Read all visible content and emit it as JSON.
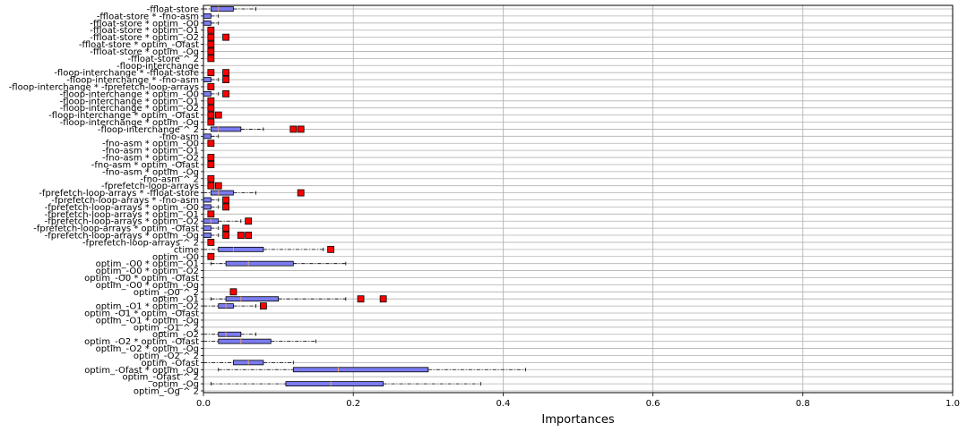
{
  "chart_data": {
    "type": "boxplot",
    "orientation": "horizontal",
    "xlabel": "Importances",
    "xlim": [
      0,
      1
    ],
    "xticks": [
      "0.0",
      "0.2",
      "0.4",
      "0.6",
      "0.8",
      "1.0"
    ],
    "xtick_values": [
      0,
      0.2,
      0.4,
      0.6,
      0.8,
      1.0
    ],
    "grid": true,
    "colors": {
      "box_fill": "#7b7bf0",
      "box_edge": "#000000",
      "median": "#e8a070",
      "flier": "#ff0000",
      "grid": "#b0b0b0"
    },
    "categories": [
      "-ffloat-store",
      "-ffloat-store * -fno-asm",
      "-ffloat-store * optim_-O0",
      "-ffloat-store * optim_-O1",
      "-ffloat-store * optim_-O2",
      "-ffloat-store * optim_-Ofast",
      "-ffloat-store * optim_-Og",
      "-ffloat-store ^ 2",
      "-floop-interchange",
      "-floop-interchange * -ffloat-store",
      "-floop-interchange * -fno-asm",
      "-floop-interchange * -fprefetch-loop-arrays",
      "-floop-interchange * optim_-O0",
      "-floop-interchange * optim_-O1",
      "-floop-interchange * optim_-O2",
      "-floop-interchange * optim_-Ofast",
      "-floop-interchange * optim_-Og",
      "-floop-interchange ^ 2",
      "-fno-asm",
      "-fno-asm * optim_-O0",
      "-fno-asm * optim_-O1",
      "-fno-asm * optim_-O2",
      "-fno-asm * optim_-Ofast",
      "-fno-asm * optim_-Og",
      "-fno-asm ^ 2",
      "-fprefetch-loop-arrays",
      "-fprefetch-loop-arrays * -ffloat-store",
      "-fprefetch-loop-arrays * -fno-asm",
      "-fprefetch-loop-arrays * optim_-O0",
      "-fprefetch-loop-arrays * optim_-O1",
      "-fprefetch-loop-arrays * optim_-O2",
      "-fprefetch-loop-arrays * optim_-Ofast",
      "-fprefetch-loop-arrays * optim_-Og",
      "-fprefetch-loop-arrays ^ 2",
      "ctime",
      "optim_-O0",
      "optim_-O0 * optim_-O1",
      "optim_-O0 * optim_-O2",
      "optim_-O0 * optim_-Ofast",
      "optim_-O0 * optim_-Og",
      "optim_-O0 ^ 2",
      "optim_-O1",
      "optim_-O1 * optim_-O2",
      "optim_-O1 * optim_-Ofast",
      "optim_-O1 * optim_-Og",
      "optim_-O1 ^ 2",
      "optim_-O2",
      "optim_-O2 * optim_-Ofast",
      "optim_-O2 * optim_-Og",
      "optim_-O2 ^ 2",
      "optim_-Ofast",
      "optim_-Ofast * optim_-Og",
      "optim_-Ofast ^ 2",
      "optim_-Og",
      "optim_-Og ^ 2"
    ],
    "boxes": [
      {
        "wlo": 0.0,
        "q1": 0.01,
        "med": 0.02,
        "q3": 0.04,
        "whi": 0.07,
        "fliers": []
      },
      {
        "wlo": 0.0,
        "q1": 0.0,
        "med": 0.0,
        "q3": 0.01,
        "whi": 0.02,
        "fliers": []
      },
      {
        "wlo": 0.0,
        "q1": 0.0,
        "med": 0.0,
        "q3": 0.01,
        "whi": 0.02,
        "fliers": []
      },
      {
        "wlo": 0.0,
        "q1": 0.0,
        "med": 0.0,
        "q3": 0.0,
        "whi": 0.0,
        "fliers": [
          0.01
        ]
      },
      {
        "wlo": 0.0,
        "q1": 0.0,
        "med": 0.0,
        "q3": 0.0,
        "whi": 0.0,
        "fliers": [
          0.01,
          0.03
        ]
      },
      {
        "wlo": 0.0,
        "q1": 0.0,
        "med": 0.0,
        "q3": 0.0,
        "whi": 0.0,
        "fliers": [
          0.01
        ]
      },
      {
        "wlo": 0.0,
        "q1": 0.0,
        "med": 0.0,
        "q3": 0.0,
        "whi": 0.0,
        "fliers": [
          0.01
        ]
      },
      {
        "wlo": 0.0,
        "q1": 0.0,
        "med": 0.0,
        "q3": 0.0,
        "whi": 0.0,
        "fliers": [
          0.01
        ]
      },
      {
        "wlo": 0.0,
        "q1": 0.0,
        "med": 0.0,
        "q3": 0.0,
        "whi": 0.0,
        "fliers": []
      },
      {
        "wlo": 0.0,
        "q1": 0.0,
        "med": 0.0,
        "q3": 0.0,
        "whi": 0.0,
        "fliers": [
          0.01,
          0.03
        ]
      },
      {
        "wlo": 0.0,
        "q1": 0.0,
        "med": 0.0,
        "q3": 0.01,
        "whi": 0.02,
        "fliers": [
          0.03
        ]
      },
      {
        "wlo": 0.0,
        "q1": 0.0,
        "med": 0.0,
        "q3": 0.0,
        "whi": 0.0,
        "fliers": [
          0.01
        ]
      },
      {
        "wlo": 0.0,
        "q1": 0.0,
        "med": 0.0,
        "q3": 0.01,
        "whi": 0.02,
        "fliers": [
          0.03
        ]
      },
      {
        "wlo": 0.0,
        "q1": 0.0,
        "med": 0.0,
        "q3": 0.0,
        "whi": 0.0,
        "fliers": [
          0.01
        ]
      },
      {
        "wlo": 0.0,
        "q1": 0.0,
        "med": 0.0,
        "q3": 0.0,
        "whi": 0.0,
        "fliers": [
          0.01
        ]
      },
      {
        "wlo": 0.0,
        "q1": 0.0,
        "med": 0.0,
        "q3": 0.0,
        "whi": 0.0,
        "fliers": [
          0.01,
          0.02
        ]
      },
      {
        "wlo": 0.0,
        "q1": 0.0,
        "med": 0.0,
        "q3": 0.0,
        "whi": 0.0,
        "fliers": [
          0.01
        ]
      },
      {
        "wlo": 0.0,
        "q1": 0.01,
        "med": 0.02,
        "q3": 0.05,
        "whi": 0.08,
        "fliers": [
          0.12,
          0.13
        ]
      },
      {
        "wlo": 0.0,
        "q1": 0.0,
        "med": 0.0,
        "q3": 0.01,
        "whi": 0.02,
        "fliers": []
      },
      {
        "wlo": 0.0,
        "q1": 0.0,
        "med": 0.0,
        "q3": 0.0,
        "whi": 0.0,
        "fliers": [
          0.01
        ]
      },
      {
        "wlo": 0.0,
        "q1": 0.0,
        "med": 0.0,
        "q3": 0.0,
        "whi": 0.0,
        "fliers": []
      },
      {
        "wlo": 0.0,
        "q1": 0.0,
        "med": 0.0,
        "q3": 0.0,
        "whi": 0.0,
        "fliers": [
          0.01
        ]
      },
      {
        "wlo": 0.0,
        "q1": 0.0,
        "med": 0.0,
        "q3": 0.0,
        "whi": 0.0,
        "fliers": [
          0.01
        ]
      },
      {
        "wlo": 0.0,
        "q1": 0.0,
        "med": 0.0,
        "q3": 0.0,
        "whi": 0.0,
        "fliers": []
      },
      {
        "wlo": 0.0,
        "q1": 0.0,
        "med": 0.0,
        "q3": 0.0,
        "whi": 0.0,
        "fliers": [
          0.01
        ]
      },
      {
        "wlo": 0.0,
        "q1": 0.0,
        "med": 0.0,
        "q3": 0.0,
        "whi": 0.0,
        "fliers": [
          0.01,
          0.02
        ]
      },
      {
        "wlo": 0.0,
        "q1": 0.01,
        "med": 0.02,
        "q3": 0.04,
        "whi": 0.07,
        "fliers": [
          0.13
        ]
      },
      {
        "wlo": 0.0,
        "q1": 0.0,
        "med": 0.0,
        "q3": 0.01,
        "whi": 0.02,
        "fliers": [
          0.03
        ]
      },
      {
        "wlo": 0.0,
        "q1": 0.0,
        "med": 0.0,
        "q3": 0.01,
        "whi": 0.02,
        "fliers": [
          0.03
        ]
      },
      {
        "wlo": 0.0,
        "q1": 0.0,
        "med": 0.0,
        "q3": 0.0,
        "whi": 0.0,
        "fliers": [
          0.01
        ]
      },
      {
        "wlo": 0.0,
        "q1": 0.0,
        "med": 0.01,
        "q3": 0.02,
        "whi": 0.05,
        "fliers": [
          0.06
        ]
      },
      {
        "wlo": 0.0,
        "q1": 0.0,
        "med": 0.0,
        "q3": 0.01,
        "whi": 0.02,
        "fliers": [
          0.03
        ]
      },
      {
        "wlo": 0.0,
        "q1": 0.0,
        "med": 0.0,
        "q3": 0.01,
        "whi": 0.02,
        "fliers": [
          0.03,
          0.05,
          0.06
        ]
      },
      {
        "wlo": 0.0,
        "q1": 0.0,
        "med": 0.0,
        "q3": 0.0,
        "whi": 0.0,
        "fliers": [
          0.01
        ]
      },
      {
        "wlo": 0.0,
        "q1": 0.02,
        "med": 0.04,
        "q3": 0.08,
        "whi": 0.16,
        "fliers": [
          0.17
        ]
      },
      {
        "wlo": 0.0,
        "q1": 0.0,
        "med": 0.0,
        "q3": 0.0,
        "whi": 0.0,
        "fliers": [
          0.01
        ]
      },
      {
        "wlo": 0.01,
        "q1": 0.03,
        "med": 0.06,
        "q3": 0.12,
        "whi": 0.19,
        "fliers": []
      },
      {
        "wlo": 0.0,
        "q1": 0.0,
        "med": 0.0,
        "q3": 0.0,
        "whi": 0.0,
        "fliers": []
      },
      {
        "wlo": 0.0,
        "q1": 0.0,
        "med": 0.0,
        "q3": 0.0,
        "whi": 0.0,
        "fliers": []
      },
      {
        "wlo": 0.0,
        "q1": 0.0,
        "med": 0.0,
        "q3": 0.0,
        "whi": 0.0,
        "fliers": []
      },
      {
        "wlo": 0.0,
        "q1": 0.0,
        "med": 0.0,
        "q3": 0.0,
        "whi": 0.0,
        "fliers": [
          0.04
        ]
      },
      {
        "wlo": 0.01,
        "q1": 0.03,
        "med": 0.05,
        "q3": 0.1,
        "whi": 0.19,
        "fliers": [
          0.21,
          0.24
        ]
      },
      {
        "wlo": 0.0,
        "q1": 0.02,
        "med": 0.03,
        "q3": 0.04,
        "whi": 0.07,
        "fliers": [
          0.08
        ]
      },
      {
        "wlo": 0.0,
        "q1": 0.0,
        "med": 0.0,
        "q3": 0.0,
        "whi": 0.0,
        "fliers": []
      },
      {
        "wlo": 0.0,
        "q1": 0.0,
        "med": 0.0,
        "q3": 0.0,
        "whi": 0.0,
        "fliers": []
      },
      {
        "wlo": 0.0,
        "q1": 0.0,
        "med": 0.0,
        "q3": 0.0,
        "whi": 0.0,
        "fliers": []
      },
      {
        "wlo": 0.0,
        "q1": 0.02,
        "med": 0.03,
        "q3": 0.05,
        "whi": 0.07,
        "fliers": []
      },
      {
        "wlo": 0.0,
        "q1": 0.02,
        "med": 0.05,
        "q3": 0.09,
        "whi": 0.15,
        "fliers": []
      },
      {
        "wlo": 0.0,
        "q1": 0.0,
        "med": 0.0,
        "q3": 0.0,
        "whi": 0.0,
        "fliers": []
      },
      {
        "wlo": 0.0,
        "q1": 0.0,
        "med": 0.0,
        "q3": 0.0,
        "whi": 0.0,
        "fliers": []
      },
      {
        "wlo": 0.0,
        "q1": 0.04,
        "med": 0.06,
        "q3": 0.08,
        "whi": 0.12,
        "fliers": []
      },
      {
        "wlo": 0.02,
        "q1": 0.12,
        "med": 0.18,
        "q3": 0.3,
        "whi": 0.43,
        "fliers": []
      },
      {
        "wlo": 0.0,
        "q1": 0.0,
        "med": 0.0,
        "q3": 0.0,
        "whi": 0.0,
        "fliers": []
      },
      {
        "wlo": 0.01,
        "q1": 0.11,
        "med": 0.17,
        "q3": 0.24,
        "whi": 0.37,
        "fliers": []
      },
      {
        "wlo": 0.0,
        "q1": 0.0,
        "med": 0.0,
        "q3": 0.0,
        "whi": 0.0,
        "fliers": []
      }
    ]
  }
}
